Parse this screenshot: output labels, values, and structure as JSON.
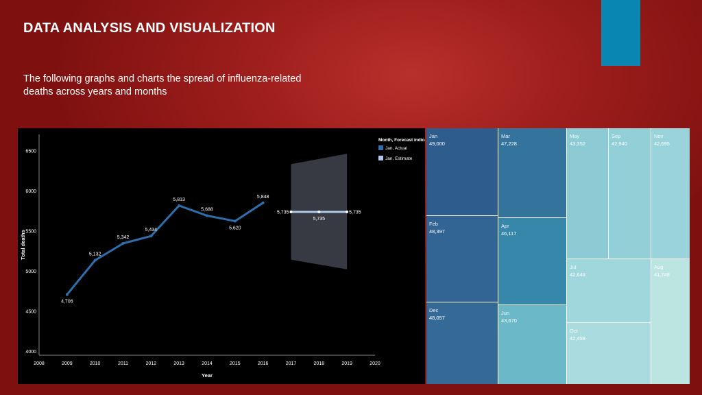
{
  "slide": {
    "title": "DATA ANALYSIS AND VISUALIZATION",
    "subtitle": "The following graphs and charts the spread of influenza-related deaths across years and months",
    "accent_color": "#0a86b2"
  },
  "chart_data": [
    {
      "type": "line",
      "xlabel": "Year",
      "ylabel": "Total deaths",
      "xlim": [
        2008,
        2020
      ],
      "ylim": [
        3950,
        6700
      ],
      "x_ticks": [
        2008,
        2009,
        2010,
        2011,
        2012,
        2013,
        2014,
        2015,
        2016,
        2017,
        2018,
        2019,
        2020
      ],
      "y_ticks": [
        4000,
        4500,
        5000,
        5500,
        6000,
        6500
      ],
      "legend": {
        "title": "Month, Forecast indicator",
        "position": "top-right",
        "entries": [
          {
            "label": "Jan, Actual",
            "color": "#2e6fae"
          },
          {
            "label": "Jan, Estimate",
            "color": "#aec8ec"
          }
        ]
      },
      "series": [
        {
          "color": "#2e6fae",
          "points": [
            {
              "x": 2009,
              "y": 4706,
              "label": "4,706"
            },
            {
              "x": 2010,
              "y": 5132,
              "label": "5,132"
            },
            {
              "x": 2011,
              "y": 5342,
              "label": "5,342"
            },
            {
              "x": 2012,
              "y": 5434,
              "label": "5,434"
            },
            {
              "x": 2013,
              "y": 5813,
              "label": "5,813"
            },
            {
              "x": 2014,
              "y": 5688,
              "label": "5,688"
            },
            {
              "x": 2015,
              "y": 5620,
              "label": "5,620"
            },
            {
              "x": 2016,
              "y": 5848,
              "label": "5,848"
            }
          ]
        },
        {
          "color": "#aec8ec",
          "points": [
            {
              "x": 2017,
              "y": 5735,
              "label": "5,735"
            },
            {
              "x": 2018,
              "y": 5735,
              "label": "5,735"
            },
            {
              "x": 2019,
              "y": 5735,
              "label": "5,735"
            }
          ]
        }
      ],
      "prediction_band": {
        "color": "#3a3d46",
        "x": [
          2017,
          2019
        ],
        "upper": [
          6330,
          6460
        ],
        "lower": [
          5140,
          5020
        ]
      }
    },
    {
      "type": "treemap",
      "tiles": [
        {
          "label": "Jan",
          "value": "49,000",
          "color": "#2e5c8c"
        },
        {
          "label": "Feb",
          "value": "48,397",
          "color": "#326593"
        },
        {
          "label": "Dec",
          "value": "48,057",
          "color": "#346a95"
        },
        {
          "label": "Mar",
          "value": "47,228",
          "color": "#34749c"
        },
        {
          "label": "Apr",
          "value": "46,117",
          "color": "#3787aa"
        },
        {
          "label": "Jun",
          "value": "43,670",
          "color": "#6ab8c8"
        },
        {
          "label": "May",
          "value": "43,352",
          "color": "#8ccbd4"
        },
        {
          "label": "Sep",
          "value": "42,940",
          "color": "#92cfd7"
        },
        {
          "label": "Nov",
          "value": "42,695",
          "color": "#9ad3d9"
        },
        {
          "label": "Jul",
          "value": "42,648",
          "color": "#a0d7dc"
        },
        {
          "label": "Oct",
          "value": "42,458",
          "color": "#aadcdf"
        },
        {
          "label": "Aug",
          "value": "41,748",
          "color": "#bce5e1"
        }
      ]
    }
  ]
}
